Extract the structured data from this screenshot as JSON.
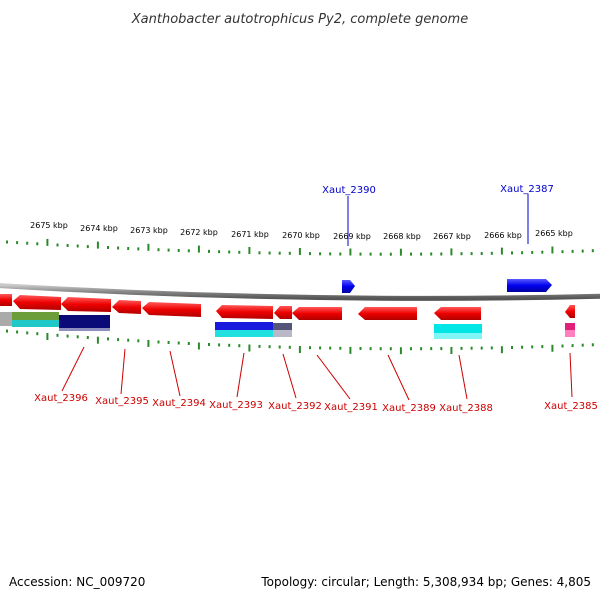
{
  "title": "Xanthobacter autotrophicus Py2, complete genome",
  "footer": {
    "accession": "Accession: NC_009720",
    "summary": "Topology: circular; Length: 5,308,934 bp; Genes: 4,805"
  },
  "colors": {
    "forward_gene": "#0000ee",
    "reverse_gene": "#ee0000",
    "forward_label": "#0000cc",
    "reverse_label": "#cc0000",
    "ticks": "#2a8a2a",
    "backbone": "#888888"
  },
  "kbp_labels": [
    "2675 kbp",
    "2674 kbp",
    "2673 kbp",
    "2672 kbp",
    "2671 kbp",
    "2670 kbp",
    "2669 kbp",
    "2668 kbp",
    "2667 kbp",
    "2666 kbp",
    "2665 kbp"
  ],
  "forward_gene_labels": [
    "Xaut_2390",
    "Xaut_2387"
  ],
  "reverse_gene_labels": [
    "Xaut_2396",
    "Xaut_2395",
    "Xaut_2394",
    "Xaut_2393",
    "Xaut_2392",
    "Xaut_2391",
    "Xaut_2389",
    "Xaut_2388",
    "Xaut_2385"
  ]
}
